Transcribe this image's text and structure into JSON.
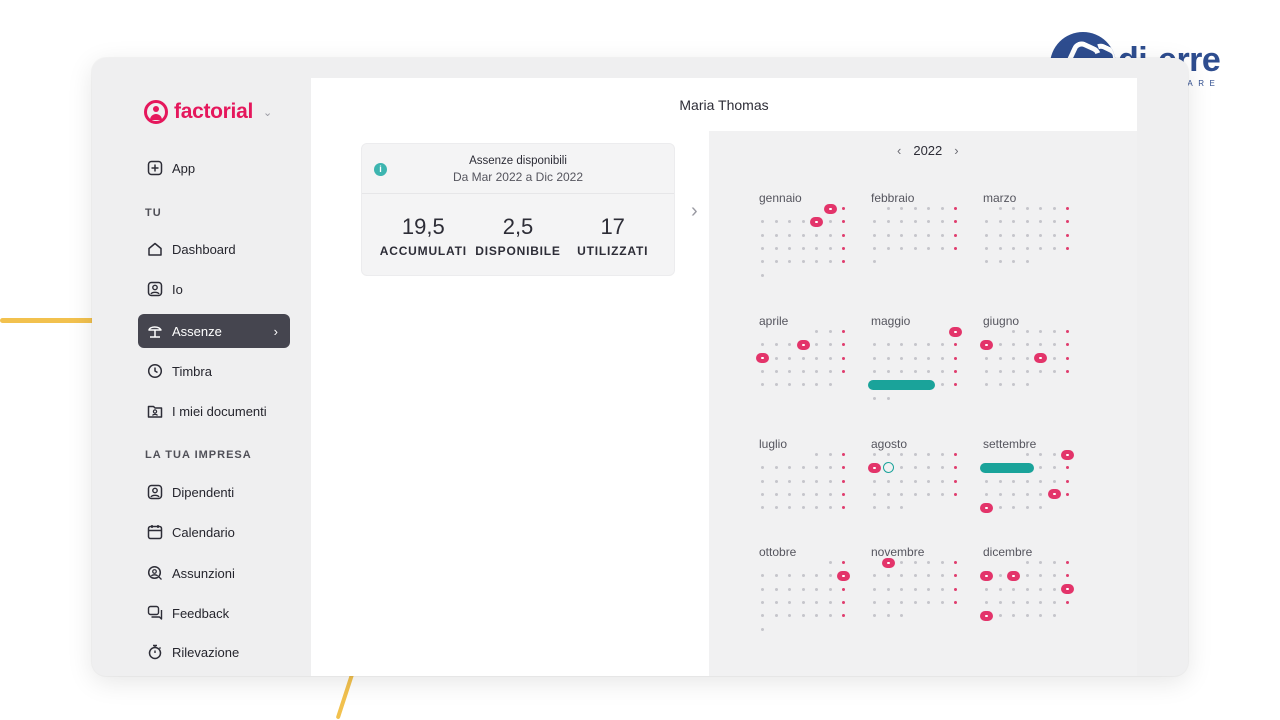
{
  "brand": {
    "name": "factorial"
  },
  "corner_logo": {
    "name": "di-erre",
    "tagline": "SOFTWARE"
  },
  "sidebar": {
    "top_item": {
      "label": "App",
      "icon": "plus-square-icon"
    },
    "section_you": "TU",
    "you_items": [
      {
        "label": "Dashboard",
        "icon": "home-icon"
      },
      {
        "label": "Io",
        "icon": "user-icon"
      },
      {
        "label": "Assenze",
        "icon": "beach-umbrella-icon",
        "active": true
      },
      {
        "label": "Timbra",
        "icon": "clock-icon"
      },
      {
        "label": "I miei documenti",
        "icon": "folder-user-icon"
      }
    ],
    "section_company": "LA TUA IMPRESA",
    "company_items": [
      {
        "label": "Dipendenti",
        "icon": "users-icon"
      },
      {
        "label": "Calendario",
        "icon": "calendar-icon"
      },
      {
        "label": "Assunzioni",
        "icon": "search-user-icon"
      },
      {
        "label": "Feedback",
        "icon": "chat-icon"
      },
      {
        "label": "Rilevazione",
        "icon": "stopwatch-icon"
      }
    ]
  },
  "header": {
    "title": "Maria Thomas"
  },
  "absences_card": {
    "title": "Assenze disponibili",
    "period": "Da Mar 2022 a Dic 2022",
    "stats": [
      {
        "value": "19,5",
        "label": "ACCUMULATI"
      },
      {
        "value": "2,5",
        "label": "DISPONIBILE"
      },
      {
        "value": "17",
        "label": "UTILIZZATI"
      }
    ]
  },
  "calendar": {
    "year": "2022",
    "colors": {
      "absence": "#e3346a",
      "vacation": "#1aa39a",
      "weekday_dot": "#c5c5cb",
      "sunday_dot": "#e03c6e"
    },
    "months": [
      {
        "name": "gennaio",
        "first": 5,
        "days": 31,
        "marks": [
          {
            "t": "r",
            "d": 7
          },
          {
            "t": "r",
            "d": 1
          }
        ]
      },
      {
        "name": "febbraio",
        "first": 1,
        "days": 28,
        "marks": []
      },
      {
        "name": "marzo",
        "first": 1,
        "days": 31,
        "marks": []
      },
      {
        "name": "aprile",
        "first": 4,
        "days": 30,
        "marks": [
          {
            "t": "r",
            "d": 7
          },
          {
            "t": "r",
            "d": 11
          }
        ]
      },
      {
        "name": "maggio",
        "first": 6,
        "days": 31,
        "marks": [
          {
            "t": "r",
            "d": 1
          },
          {
            "t": "t",
            "d": 23,
            "len": 5
          }
        ]
      },
      {
        "name": "giugno",
        "first": 2,
        "days": 30,
        "marks": [
          {
            "t": "r",
            "d": 6
          },
          {
            "t": "r",
            "d": 17
          }
        ]
      },
      {
        "name": "luglio",
        "first": 4,
        "days": 31,
        "marks": []
      },
      {
        "name": "agosto",
        "first": 0,
        "days": 31,
        "marks": [
          {
            "t": "r",
            "d": 8
          },
          {
            "t": "o",
            "d": 9
          }
        ]
      },
      {
        "name": "settembre",
        "first": 3,
        "days": 30,
        "marks": [
          {
            "t": "r",
            "d": 4
          },
          {
            "t": "t",
            "d": 5,
            "len": 4
          },
          {
            "t": "r",
            "d": 24
          },
          {
            "t": "r",
            "d": 26
          }
        ]
      },
      {
        "name": "ottobre",
        "first": 5,
        "days": 31,
        "marks": [
          {
            "t": "r",
            "d": 9
          }
        ]
      },
      {
        "name": "novembre",
        "first": 1,
        "days": 30,
        "marks": [
          {
            "t": "r",
            "d": 1
          }
        ]
      },
      {
        "name": "dicembre",
        "first": 3,
        "days": 31,
        "marks": [
          {
            "t": "r",
            "d": 5
          },
          {
            "t": "r",
            "d": 7
          },
          {
            "t": "r",
            "d": 18
          },
          {
            "t": "r",
            "d": 26
          }
        ]
      }
    ]
  }
}
